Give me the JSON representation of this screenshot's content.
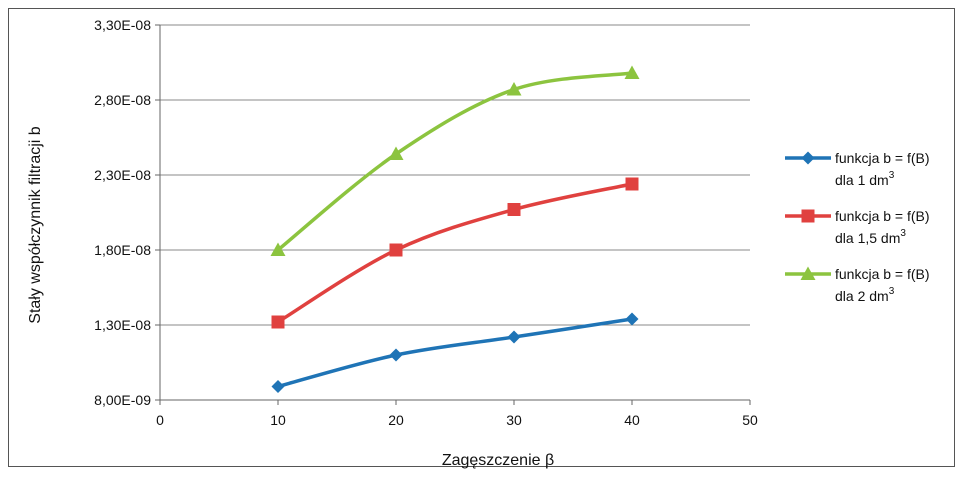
{
  "chart_data": {
    "type": "line",
    "xlabel": "Zagęszczenie β",
    "ylabel": "Stały współczynnik filtracji b",
    "xlim": [
      0,
      50
    ],
    "ylim": [
      8e-09,
      3.3e-08
    ],
    "x_ticks": [
      "0",
      "10",
      "20",
      "30",
      "40",
      "50"
    ],
    "y_ticks": [
      "8,00E-09",
      "1,30E-08",
      "1,80E-08",
      "2,30E-08",
      "2,80E-08",
      "3,30E-08"
    ],
    "grid": "horizontal",
    "legend_position": "right",
    "series": [
      {
        "name": "funkcja b = f(B) dla 1 dm3",
        "name_line1": "funkcja b = f(B)",
        "name_line2": "dla 1 dm",
        "name_sup": "3",
        "color": "#1f74b6",
        "marker": "diamond",
        "x": [
          10,
          20,
          30,
          40
        ],
        "values": [
          8.9e-09,
          1.1e-08,
          1.22e-08,
          1.34e-08
        ]
      },
      {
        "name": "funkcja b = f(B) dla 1,5 dm3",
        "name_line1": "funkcja b = f(B)",
        "name_line2": "dla 1,5 dm",
        "name_sup": "3",
        "color": "#e0413f",
        "marker": "square",
        "x": [
          10,
          20,
          30,
          40
        ],
        "values": [
          1.32e-08,
          1.8e-08,
          2.07e-08,
          2.24e-08
        ]
      },
      {
        "name": "funkcja b = f(B) dla 2 dm3",
        "name_line1": "funkcja b = f(B)",
        "name_line2": "dla 2 dm",
        "name_sup": "3",
        "color": "#8cc43f",
        "marker": "triangle",
        "x": [
          10,
          20,
          30,
          40
        ],
        "values": [
          1.8e-08,
          2.44e-08,
          2.87e-08,
          2.98e-08
        ]
      }
    ]
  }
}
